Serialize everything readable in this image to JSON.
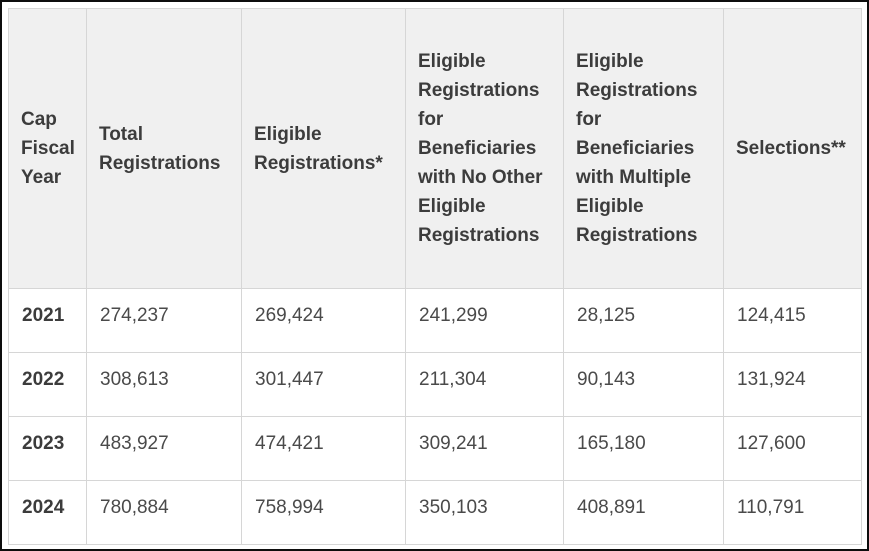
{
  "table": {
    "columns": [
      "Cap Fiscal Year",
      "Total Registrations",
      "Eligible Registrations*",
      "Eligible Registrations for Beneficiaries with No Other Eligible Registrations",
      "Eligible Registrations for Beneficiaries with Multiple Eligible Registrations",
      "Selections**"
    ],
    "rows": [
      [
        "2021",
        "274,237",
        "269,424",
        "241,299",
        "28,125",
        "124,415"
      ],
      [
        "2022",
        "308,613",
        "301,447",
        "211,304",
        "90,143",
        "131,924"
      ],
      [
        "2023",
        "483,927",
        "474,421",
        "309,241",
        "165,180",
        "127,600"
      ],
      [
        "2024",
        "780,884",
        "758,994",
        "350,103",
        "408,891",
        "110,791"
      ]
    ]
  },
  "chart_data": {
    "type": "table",
    "title": "",
    "columns": [
      "Cap Fiscal Year",
      "Total Registrations",
      "Eligible Registrations*",
      "Eligible Registrations for Beneficiaries with No Other Eligible Registrations",
      "Eligible Registrations for Beneficiaries with Multiple Eligible Registrations",
      "Selections**"
    ],
    "rows": [
      {
        "cap_fiscal_year": 2021,
        "total_registrations": 274237,
        "eligible_registrations": 269424,
        "eligible_no_other": 241299,
        "eligible_multiple": 28125,
        "selections": 124415
      },
      {
        "cap_fiscal_year": 2022,
        "total_registrations": 308613,
        "eligible_registrations": 301447,
        "eligible_no_other": 211304,
        "eligible_multiple": 90143,
        "selections": 131924
      },
      {
        "cap_fiscal_year": 2023,
        "total_registrations": 483927,
        "eligible_registrations": 474421,
        "eligible_no_other": 309241,
        "eligible_multiple": 165180,
        "selections": 127600
      },
      {
        "cap_fiscal_year": 2024,
        "total_registrations": 780884,
        "eligible_registrations": 758994,
        "eligible_no_other": 350103,
        "eligible_multiple": 408891,
        "selections": 110791
      }
    ]
  },
  "colors": {
    "header_background": "#f0f0f0",
    "cell_border": "#d6d6d6",
    "header_text": "#3c3c3c",
    "body_text": "#4a4a4a",
    "outer_frame": "#0d0d0d"
  }
}
